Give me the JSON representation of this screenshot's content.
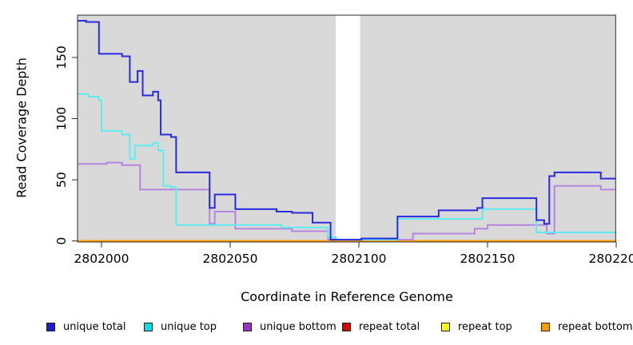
{
  "chart_data": {
    "type": "line",
    "subtype": "step-coverage",
    "title": "",
    "xlabel": "Coordinate in Reference Genome",
    "ylabel": "Read Coverage Depth",
    "xlim": [
      2801990,
      2802200.5
    ],
    "ylim": [
      0,
      185
    ],
    "x_ticks": [
      2802000,
      2802050,
      2802100,
      2802150,
      2802200
    ],
    "y_ticks": [
      0,
      50,
      100,
      150
    ],
    "grid": false,
    "legend_position": "bottom",
    "plot_background": "#d9d9d9",
    "page_background": "#ffffff",
    "no_data_gap": [
      2802091,
      2802100.5
    ],
    "x_end": 2802200.5,
    "series": [
      {
        "name": "repeat total",
        "color": "#e00000",
        "points": [
          [
            2801990,
            0
          ]
        ]
      },
      {
        "name": "repeat top",
        "color": "#ffff00",
        "points": [
          [
            2801990,
            0
          ]
        ]
      },
      {
        "name": "repeat bottom",
        "color": "#ff9d00",
        "points": [
          [
            2801990,
            0
          ]
        ]
      },
      {
        "name": "unique bottom",
        "color": "#b685e0",
        "points": [
          [
            2801990,
            63
          ],
          [
            2802002,
            64
          ],
          [
            2802008,
            62
          ],
          [
            2802015,
            42
          ],
          [
            2802042,
            14
          ],
          [
            2802044,
            24
          ],
          [
            2802052,
            10
          ],
          [
            2802074,
            8
          ],
          [
            2802088,
            1
          ],
          [
            2802121,
            6
          ],
          [
            2802145,
            10
          ],
          [
            2802150,
            13
          ],
          [
            2802173,
            6
          ],
          [
            2802176,
            45
          ],
          [
            2802194,
            42
          ]
        ]
      },
      {
        "name": "unique top",
        "color": "#5fecee",
        "points": [
          [
            2801990,
            120
          ],
          [
            2801995,
            118
          ],
          [
            2801999,
            115
          ],
          [
            2802000,
            90
          ],
          [
            2802008,
            87
          ],
          [
            2802011,
            67
          ],
          [
            2802013,
            78
          ],
          [
            2802020,
            80
          ],
          [
            2802022,
            74
          ],
          [
            2802024,
            45
          ],
          [
            2802027,
            44
          ],
          [
            2802029,
            13
          ],
          [
            2802070,
            11
          ],
          [
            2802088,
            3
          ],
          [
            2802091,
            1
          ],
          [
            2802115,
            18
          ],
          [
            2802148,
            26
          ],
          [
            2802169,
            7
          ]
        ]
      },
      {
        "name": "unique total",
        "color": "#2a2ae0",
        "points": [
          [
            2801990,
            180
          ],
          [
            2801994,
            179
          ],
          [
            2801999,
            153
          ],
          [
            2802008,
            151
          ],
          [
            2802011,
            130
          ],
          [
            2802014,
            139
          ],
          [
            2802016,
            119
          ],
          [
            2802020,
            122
          ],
          [
            2802022,
            115
          ],
          [
            2802023,
            87
          ],
          [
            2802027,
            85
          ],
          [
            2802029,
            56
          ],
          [
            2802042,
            27
          ],
          [
            2802044,
            38
          ],
          [
            2802052,
            26
          ],
          [
            2802068,
            24
          ],
          [
            2802074,
            23
          ],
          [
            2802082,
            15
          ],
          [
            2802089,
            1
          ],
          [
            2802101,
            2
          ],
          [
            2802115,
            20
          ],
          [
            2802131,
            25
          ],
          [
            2802146,
            27
          ],
          [
            2802148,
            35
          ],
          [
            2802169,
            17
          ],
          [
            2802172,
            14
          ],
          [
            2802174,
            53
          ],
          [
            2802176,
            56
          ],
          [
            2802194,
            51
          ]
        ]
      }
    ],
    "legend": [
      {
        "label": "unique total",
        "color": "#1c1cd8"
      },
      {
        "label": "unique top",
        "color": "#00dfe8"
      },
      {
        "label": "unique bottom",
        "color": "#9932cc"
      },
      {
        "label": "repeat total",
        "color": "#e00000"
      },
      {
        "label": "repeat top",
        "color": "#ffff00"
      },
      {
        "label": "repeat bottom",
        "color": "#ff9d00"
      }
    ]
  }
}
